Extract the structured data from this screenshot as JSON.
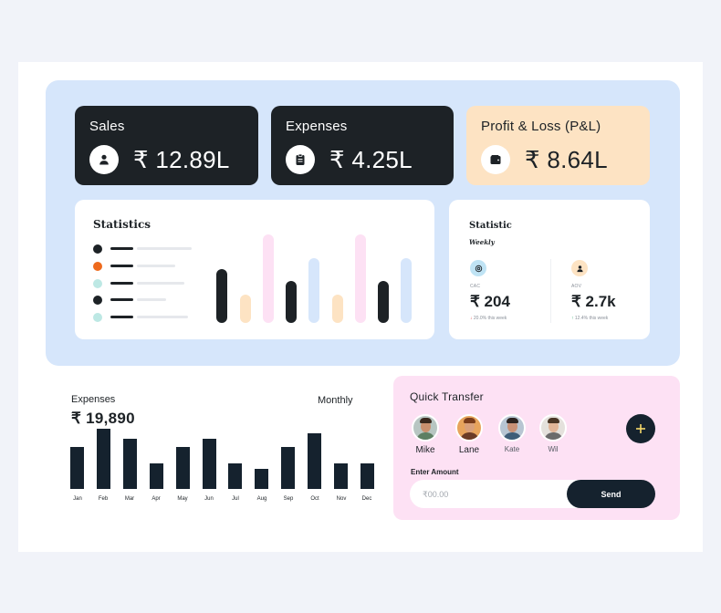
{
  "kpis": {
    "sales": {
      "label": "Sales",
      "value": "₹ 12.89L",
      "icon": "user-icon"
    },
    "expenses": {
      "label": "Expenses",
      "value": "₹ 4.25L",
      "icon": "clipboard-icon"
    },
    "profit": {
      "label": "Profit & Loss (P&L)",
      "value": "₹ 8.64L",
      "icon": "wallet-icon"
    }
  },
  "statistics": {
    "title": "Statistics"
  },
  "weekly": {
    "title": "Statistic",
    "subtitle": "Weekly",
    "metrics": [
      {
        "label": "CAC",
        "value": "₹ 204",
        "change": "20.0% this week",
        "trend": "down",
        "icon": "at-icon",
        "icon_color": "#bfe3f4"
      },
      {
        "label": "AOV",
        "value": "₹ 2.7k",
        "change": "12.4% this week",
        "trend": "up",
        "icon": "user-icon",
        "icon_color": "#fde3c3"
      }
    ]
  },
  "expenses_chart": {
    "label": "Expenses",
    "period": "Monthly",
    "total": "₹ 19,890"
  },
  "chart_data": [
    {
      "type": "bar",
      "title": "",
      "categories": [
        "Jan",
        "Feb",
        "Mar",
        "Apr",
        "May",
        "Jun",
        "Jul",
        "Aug",
        "Sep",
        "Oct",
        "Nov",
        "Dec"
      ],
      "values": [
        45,
        65,
        54,
        28,
        45,
        54,
        28,
        22,
        45,
        60,
        28,
        28
      ],
      "color": "#15222e"
    }
  ],
  "transfer": {
    "title": "Quick Transfer",
    "contacts": [
      {
        "name": "Mike",
        "skin": "#c9916e",
        "shirt": "#5d7f63",
        "hair": "#3a2a1e",
        "bg": "#b7c6c2"
      },
      {
        "name": "Lane",
        "skin": "#d9a07a",
        "shirt": "#6b3c26",
        "hair": "#7a3d1b",
        "bg": "#e7a45c"
      },
      {
        "name": "Kate",
        "skin": "#c89176",
        "shirt": "#3e5d78",
        "hair": "#2c2420",
        "bg": "#b7c5d2"
      },
      {
        "name": "Wil",
        "skin": "#e1b598",
        "shirt": "#6b6b6b",
        "hair": "#4a3626",
        "bg": "#e4e1dc"
      }
    ],
    "add_icon": "plus-icon",
    "amount_label": "Enter Amount",
    "amount_placeholder": "₹00.00",
    "send_label": "Send"
  },
  "colors": {
    "dark": "#1d2226",
    "navy_bar": "#15222e",
    "peach": "#fde3c3",
    "panel_blue": "#d6e6fb",
    "pink": "#fde1f4"
  }
}
